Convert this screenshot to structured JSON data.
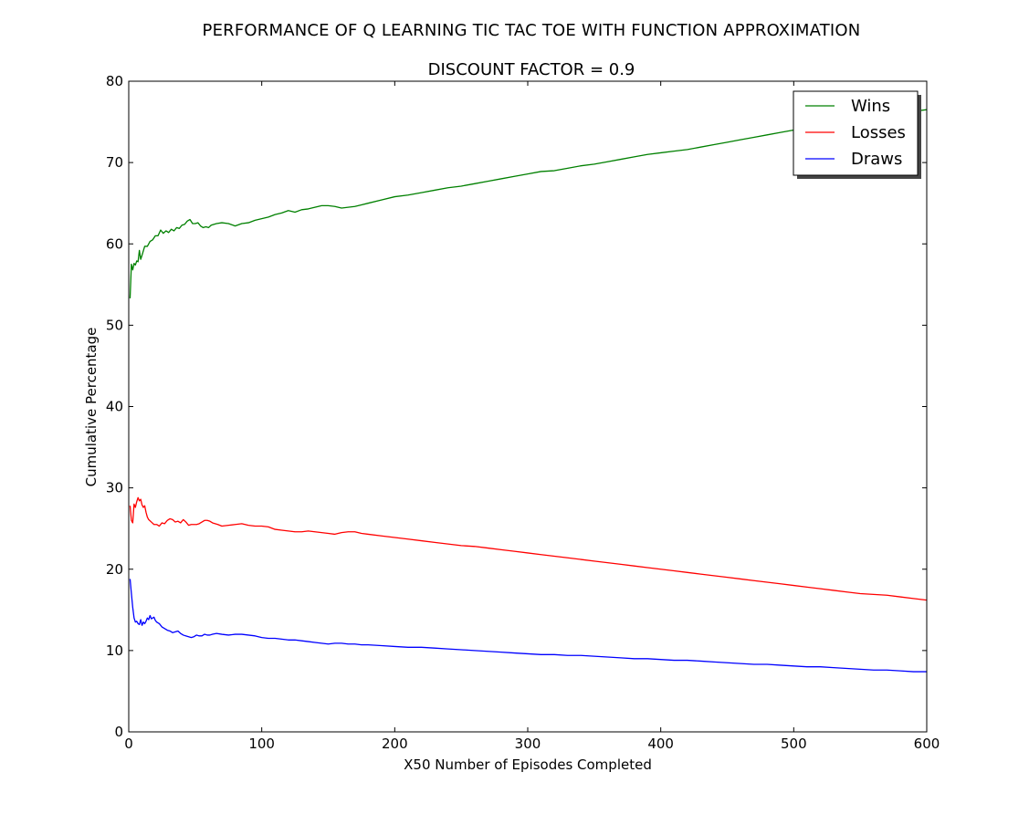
{
  "chart_data": {
    "type": "line",
    "title": "PERFORMANCE OF Q LEARNING TIC TAC TOE WITH FUNCTION APPROXIMATION",
    "subtitle": "DISCOUNT FACTOR =  0.9",
    "xlabel": "X50 Number of Episodes Completed",
    "ylabel": "Cumulative Percentage",
    "xlim": [
      0,
      600
    ],
    "ylim": [
      0,
      80
    ],
    "xticks": [
      0,
      100,
      200,
      300,
      400,
      500,
      600
    ],
    "yticks": [
      0,
      10,
      20,
      30,
      40,
      50,
      60,
      70,
      80
    ],
    "grid": false,
    "legend_position": "top-right",
    "series": [
      {
        "name": "Wins",
        "color": "#008000",
        "points": [
          [
            1,
            53.3
          ],
          [
            2,
            57.5
          ],
          [
            3,
            56.8
          ],
          [
            4,
            57.6
          ],
          [
            5,
            57.4
          ],
          [
            6,
            57.9
          ],
          [
            7,
            57.8
          ],
          [
            8,
            59.2
          ],
          [
            9,
            58.1
          ],
          [
            10,
            58.6
          ],
          [
            12,
            59.7
          ],
          [
            14,
            59.7
          ],
          [
            16,
            60.3
          ],
          [
            18,
            60.5
          ],
          [
            20,
            61.0
          ],
          [
            22,
            61.0
          ],
          [
            24,
            61.7
          ],
          [
            26,
            61.3
          ],
          [
            28,
            61.6
          ],
          [
            30,
            61.4
          ],
          [
            32,
            61.8
          ],
          [
            34,
            61.6
          ],
          [
            36,
            62.0
          ],
          [
            38,
            61.9
          ],
          [
            40,
            62.3
          ],
          [
            42,
            62.4
          ],
          [
            44,
            62.8
          ],
          [
            46,
            63.0
          ],
          [
            48,
            62.5
          ],
          [
            50,
            62.5
          ],
          [
            52,
            62.6
          ],
          [
            54,
            62.2
          ],
          [
            56,
            62.0
          ],
          [
            58,
            62.1
          ],
          [
            60,
            62.0
          ],
          [
            62,
            62.3
          ],
          [
            66,
            62.5
          ],
          [
            70,
            62.6
          ],
          [
            75,
            62.5
          ],
          [
            80,
            62.2
          ],
          [
            85,
            62.5
          ],
          [
            90,
            62.6
          ],
          [
            95,
            62.9
          ],
          [
            100,
            63.1
          ],
          [
            105,
            63.3
          ],
          [
            110,
            63.6
          ],
          [
            115,
            63.8
          ],
          [
            120,
            64.1
          ],
          [
            125,
            63.9
          ],
          [
            130,
            64.2
          ],
          [
            135,
            64.3
          ],
          [
            140,
            64.5
          ],
          [
            145,
            64.7
          ],
          [
            150,
            64.7
          ],
          [
            155,
            64.6
          ],
          [
            160,
            64.4
          ],
          [
            165,
            64.5
          ],
          [
            170,
            64.6
          ],
          [
            175,
            64.8
          ],
          [
            180,
            65.0
          ],
          [
            190,
            65.4
          ],
          [
            200,
            65.8
          ],
          [
            210,
            66.0
          ],
          [
            220,
            66.3
          ],
          [
            230,
            66.6
          ],
          [
            240,
            66.9
          ],
          [
            250,
            67.1
          ],
          [
            260,
            67.4
          ],
          [
            270,
            67.7
          ],
          [
            280,
            68.0
          ],
          [
            290,
            68.3
          ],
          [
            300,
            68.6
          ],
          [
            310,
            68.9
          ],
          [
            320,
            69.0
          ],
          [
            330,
            69.3
          ],
          [
            340,
            69.6
          ],
          [
            350,
            69.8
          ],
          [
            360,
            70.1
          ],
          [
            370,
            70.4
          ],
          [
            380,
            70.7
          ],
          [
            390,
            71.0
          ],
          [
            400,
            71.2
          ],
          [
            410,
            71.4
          ],
          [
            420,
            71.6
          ],
          [
            430,
            71.9
          ],
          [
            440,
            72.2
          ],
          [
            450,
            72.5
          ],
          [
            460,
            72.8
          ],
          [
            470,
            73.1
          ],
          [
            480,
            73.4
          ],
          [
            490,
            73.7
          ],
          [
            500,
            74.0
          ],
          [
            510,
            74.3
          ],
          [
            520,
            74.6
          ],
          [
            530,
            74.9
          ],
          [
            540,
            75.2
          ],
          [
            550,
            75.5
          ],
          [
            560,
            75.7
          ],
          [
            570,
            75.9
          ],
          [
            580,
            76.1
          ],
          [
            590,
            76.3
          ],
          [
            600,
            76.5
          ]
        ]
      },
      {
        "name": "Losses",
        "color": "#ff0000",
        "points": [
          [
            1,
            27.8
          ],
          [
            2,
            26.0
          ],
          [
            3,
            25.7
          ],
          [
            4,
            28.0
          ],
          [
            5,
            27.6
          ],
          [
            6,
            28.3
          ],
          [
            7,
            28.8
          ],
          [
            8,
            28.4
          ],
          [
            9,
            28.6
          ],
          [
            10,
            27.9
          ],
          [
            11,
            27.6
          ],
          [
            12,
            27.8
          ],
          [
            13,
            27.0
          ],
          [
            14,
            26.4
          ],
          [
            15,
            26.1
          ],
          [
            17,
            25.8
          ],
          [
            19,
            25.5
          ],
          [
            21,
            25.5
          ],
          [
            23,
            25.3
          ],
          [
            25,
            25.7
          ],
          [
            27,
            25.6
          ],
          [
            29,
            26.0
          ],
          [
            31,
            26.2
          ],
          [
            33,
            26.1
          ],
          [
            35,
            25.8
          ],
          [
            37,
            25.9
          ],
          [
            39,
            25.7
          ],
          [
            41,
            26.1
          ],
          [
            43,
            25.8
          ],
          [
            45,
            25.4
          ],
          [
            47,
            25.5
          ],
          [
            49,
            25.5
          ],
          [
            51,
            25.5
          ],
          [
            53,
            25.6
          ],
          [
            55,
            25.8
          ],
          [
            57,
            26.0
          ],
          [
            59,
            26.0
          ],
          [
            61,
            25.9
          ],
          [
            63,
            25.7
          ],
          [
            65,
            25.6
          ],
          [
            67,
            25.5
          ],
          [
            70,
            25.3
          ],
          [
            75,
            25.4
          ],
          [
            80,
            25.5
          ],
          [
            85,
            25.6
          ],
          [
            90,
            25.4
          ],
          [
            95,
            25.3
          ],
          [
            100,
            25.3
          ],
          [
            105,
            25.2
          ],
          [
            110,
            24.9
          ],
          [
            115,
            24.8
          ],
          [
            120,
            24.7
          ],
          [
            125,
            24.6
          ],
          [
            130,
            24.6
          ],
          [
            135,
            24.7
          ],
          [
            140,
            24.6
          ],
          [
            145,
            24.5
          ],
          [
            150,
            24.4
          ],
          [
            155,
            24.3
          ],
          [
            160,
            24.5
          ],
          [
            165,
            24.6
          ],
          [
            170,
            24.6
          ],
          [
            175,
            24.4
          ],
          [
            180,
            24.3
          ],
          [
            190,
            24.1
          ],
          [
            200,
            23.9
          ],
          [
            210,
            23.7
          ],
          [
            220,
            23.5
          ],
          [
            230,
            23.3
          ],
          [
            240,
            23.1
          ],
          [
            250,
            22.9
          ],
          [
            260,
            22.8
          ],
          [
            270,
            22.6
          ],
          [
            280,
            22.4
          ],
          [
            290,
            22.2
          ],
          [
            300,
            22.0
          ],
          [
            310,
            21.8
          ],
          [
            320,
            21.6
          ],
          [
            330,
            21.4
          ],
          [
            340,
            21.2
          ],
          [
            350,
            21.0
          ],
          [
            360,
            20.8
          ],
          [
            370,
            20.6
          ],
          [
            380,
            20.4
          ],
          [
            390,
            20.2
          ],
          [
            400,
            20.0
          ],
          [
            410,
            19.8
          ],
          [
            420,
            19.6
          ],
          [
            430,
            19.4
          ],
          [
            440,
            19.2
          ],
          [
            450,
            19.0
          ],
          [
            460,
            18.8
          ],
          [
            470,
            18.6
          ],
          [
            480,
            18.4
          ],
          [
            490,
            18.2
          ],
          [
            500,
            18.0
          ],
          [
            510,
            17.8
          ],
          [
            520,
            17.6
          ],
          [
            530,
            17.4
          ],
          [
            540,
            17.2
          ],
          [
            550,
            17.0
          ],
          [
            560,
            16.9
          ],
          [
            570,
            16.8
          ],
          [
            580,
            16.6
          ],
          [
            590,
            16.4
          ],
          [
            600,
            16.2
          ]
        ]
      },
      {
        "name": "Draws",
        "color": "#0000ff",
        "points": [
          [
            1,
            18.8
          ],
          [
            2,
            17.0
          ],
          [
            3,
            15.3
          ],
          [
            4,
            14.0
          ],
          [
            5,
            13.5
          ],
          [
            6,
            13.6
          ],
          [
            7,
            13.3
          ],
          [
            8,
            13.2
          ],
          [
            9,
            13.8
          ],
          [
            10,
            13.1
          ],
          [
            11,
            13.5
          ],
          [
            12,
            13.3
          ],
          [
            13,
            13.6
          ],
          [
            14,
            14.0
          ],
          [
            15,
            13.8
          ],
          [
            16,
            14.3
          ],
          [
            17,
            13.9
          ],
          [
            18,
            14.0
          ],
          [
            19,
            14.1
          ],
          [
            20,
            13.7
          ],
          [
            21,
            13.5
          ],
          [
            23,
            13.3
          ],
          [
            25,
            12.9
          ],
          [
            27,
            12.7
          ],
          [
            29,
            12.5
          ],
          [
            31,
            12.4
          ],
          [
            33,
            12.2
          ],
          [
            35,
            12.3
          ],
          [
            37,
            12.4
          ],
          [
            39,
            12.1
          ],
          [
            41,
            11.9
          ],
          [
            43,
            11.8
          ],
          [
            45,
            11.7
          ],
          [
            47,
            11.6
          ],
          [
            49,
            11.7
          ],
          [
            51,
            11.9
          ],
          [
            53,
            11.8
          ],
          [
            55,
            11.8
          ],
          [
            57,
            12.0
          ],
          [
            59,
            11.9
          ],
          [
            61,
            11.9
          ],
          [
            63,
            12.0
          ],
          [
            66,
            12.1
          ],
          [
            70,
            12.0
          ],
          [
            75,
            11.9
          ],
          [
            80,
            12.0
          ],
          [
            85,
            12.0
          ],
          [
            90,
            11.9
          ],
          [
            95,
            11.8
          ],
          [
            100,
            11.6
          ],
          [
            105,
            11.5
          ],
          [
            110,
            11.5
          ],
          [
            115,
            11.4
          ],
          [
            120,
            11.3
          ],
          [
            125,
            11.3
          ],
          [
            130,
            11.2
          ],
          [
            135,
            11.1
          ],
          [
            140,
            11.0
          ],
          [
            145,
            10.9
          ],
          [
            150,
            10.8
          ],
          [
            155,
            10.9
          ],
          [
            160,
            10.9
          ],
          [
            165,
            10.8
          ],
          [
            170,
            10.8
          ],
          [
            175,
            10.7
          ],
          [
            180,
            10.7
          ],
          [
            190,
            10.6
          ],
          [
            200,
            10.5
          ],
          [
            210,
            10.4
          ],
          [
            220,
            10.4
          ],
          [
            230,
            10.3
          ],
          [
            240,
            10.2
          ],
          [
            250,
            10.1
          ],
          [
            260,
            10.0
          ],
          [
            270,
            9.9
          ],
          [
            280,
            9.8
          ],
          [
            290,
            9.7
          ],
          [
            300,
            9.6
          ],
          [
            310,
            9.5
          ],
          [
            320,
            9.5
          ],
          [
            330,
            9.4
          ],
          [
            340,
            9.4
          ],
          [
            350,
            9.3
          ],
          [
            360,
            9.2
          ],
          [
            370,
            9.1
          ],
          [
            380,
            9.0
          ],
          [
            390,
            9.0
          ],
          [
            400,
            8.9
          ],
          [
            410,
            8.8
          ],
          [
            420,
            8.8
          ],
          [
            430,
            8.7
          ],
          [
            440,
            8.6
          ],
          [
            450,
            8.5
          ],
          [
            460,
            8.4
          ],
          [
            470,
            8.3
          ],
          [
            480,
            8.3
          ],
          [
            490,
            8.2
          ],
          [
            500,
            8.1
          ],
          [
            510,
            8.0
          ],
          [
            520,
            8.0
          ],
          [
            530,
            7.9
          ],
          [
            540,
            7.8
          ],
          [
            550,
            7.7
          ],
          [
            560,
            7.6
          ],
          [
            570,
            7.6
          ],
          [
            580,
            7.5
          ],
          [
            590,
            7.4
          ],
          [
            600,
            7.4
          ]
        ]
      }
    ]
  }
}
